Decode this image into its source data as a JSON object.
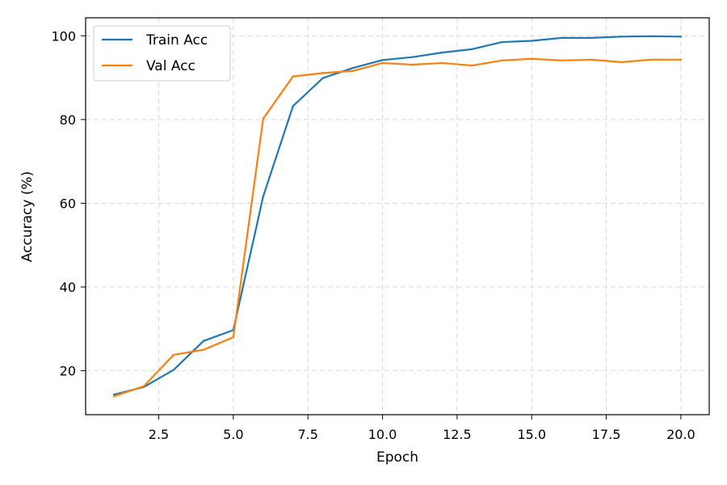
{
  "chart_data": {
    "type": "line",
    "title": "",
    "xlabel": "Epoch",
    "ylabel": "Accuracy (%)",
    "xlim": [
      0.05,
      20.95
    ],
    "ylim": [
      9.5,
      104.3
    ],
    "xticks": [
      2.5,
      5.0,
      7.5,
      10.0,
      12.5,
      15.0,
      17.5,
      20.0
    ],
    "xtick_labels": [
      "2.5",
      "5.0",
      "7.5",
      "10.0",
      "12.5",
      "15.0",
      "17.5",
      "20.0"
    ],
    "yticks": [
      20,
      40,
      60,
      80,
      100
    ],
    "ytick_labels": [
      "20",
      "40",
      "60",
      "80",
      "100"
    ],
    "grid": true,
    "legend_position": "top-left",
    "x": [
      1,
      2,
      3,
      4,
      5,
      6,
      7,
      8,
      9,
      10,
      11,
      12,
      13,
      14,
      15,
      16,
      17,
      18,
      19,
      20
    ],
    "series": [
      {
        "name": "Train Acc",
        "color": "#1f77b4",
        "values": [
          14.3,
          16.1,
          20.2,
          27.1,
          29.7,
          61.6,
          83.2,
          89.9,
          92.3,
          94.2,
          94.9,
          96.0,
          96.8,
          98.5,
          98.8,
          99.5,
          99.5,
          99.8,
          99.9,
          99.8
        ]
      },
      {
        "name": "Val Acc",
        "color": "#ff7f0e",
        "values": [
          13.9,
          16.3,
          23.8,
          25.0,
          28.0,
          80.2,
          90.3,
          91.1,
          91.6,
          93.5,
          93.1,
          93.5,
          92.9,
          94.1,
          94.5,
          94.1,
          94.3,
          93.7,
          94.3,
          94.3
        ]
      }
    ]
  }
}
